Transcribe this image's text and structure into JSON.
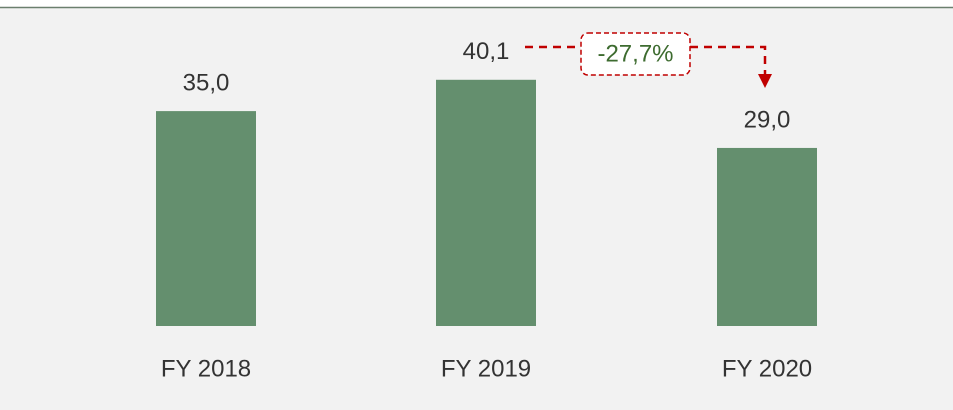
{
  "chart_data": {
    "type": "bar",
    "categories": [
      "FY 2018",
      "FY 2019",
      "FY 2020"
    ],
    "values": [
      35.0,
      40.1,
      29.0
    ],
    "value_labels": [
      "35,0",
      "40,1",
      "29,0"
    ],
    "color": "#648f6e",
    "annotation": "-27,7%"
  }
}
